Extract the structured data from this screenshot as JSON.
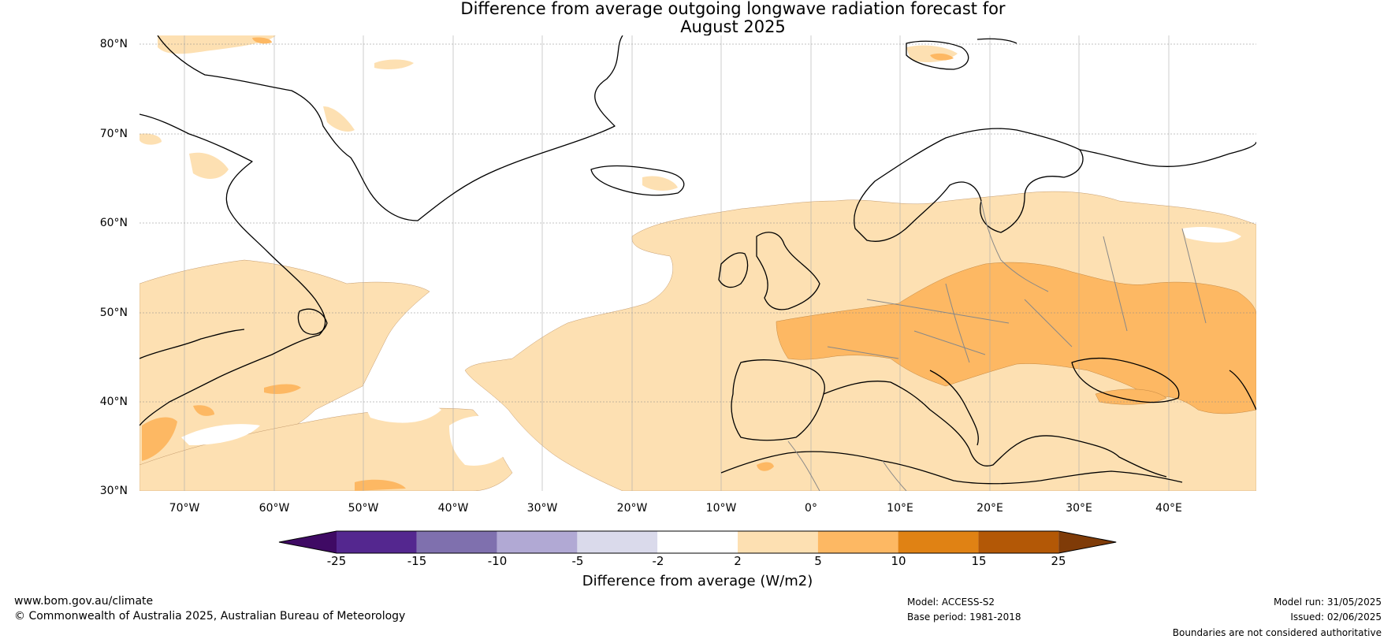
{
  "title_line1": "Difference from average outgoing longwave radiation forecast for",
  "title_line2": "August 2025",
  "lat_labels": [
    "80°N",
    "70°N",
    "60°N",
    "50°N",
    "40°N",
    "30°N"
  ],
  "lon_labels": [
    "70°W",
    "60°W",
    "50°W",
    "40°W",
    "30°W",
    "20°W",
    "10°W",
    "0°",
    "10°E",
    "20°E",
    "30°E",
    "40°E"
  ],
  "colorbar": {
    "label": "Difference from average (W/m2)",
    "ticks": [
      "-25",
      "-15",
      "-10",
      "-5",
      "-2",
      "2",
      "5",
      "10",
      "15",
      "25"
    ],
    "colors": [
      "#3f0a64",
      "#54278f",
      "#7f70ae",
      "#b1a9d4",
      "#dadaeb",
      "#ffffff",
      "#fde0b2",
      "#fdb863",
      "#e08214",
      "#b35806",
      "#7f3b08"
    ]
  },
  "footer": {
    "website": "www.bom.gov.au/climate",
    "copyright": "© Commonwealth of Australia 2025, Australian Bureau of Meteorology",
    "model": "Model: ACCESS-S2",
    "base_period": "Base period: 1981-2018",
    "model_run": "Model run: 31/05/2025",
    "issued": "Issued: 02/06/2025",
    "disclaimer": "Boundaries are not considered authoritative"
  }
}
